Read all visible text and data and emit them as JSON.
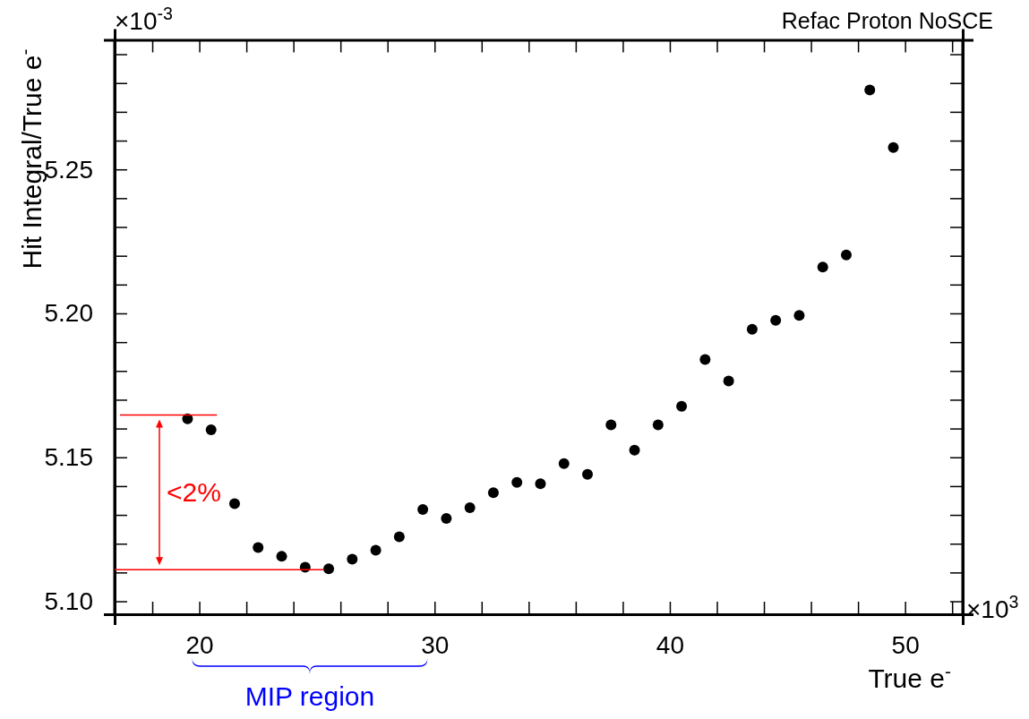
{
  "chart_data": {
    "type": "scatter",
    "title": "Refac Proton NoSCE",
    "xlabel": "True e$^{-}$",
    "ylabel": "Hit Integral/True e$^{-}$",
    "annotations": [
      "×10$^{-3}$",
      "×10$^{3}$",
      "<2%",
      "MIP region"
    ],
    "x": [
      19.5,
      20.5,
      21.5,
      22.5,
      23.5,
      24.5,
      25.5,
      26.5,
      27.5,
      28.5,
      29.5,
      30.5,
      31.5,
      32.5,
      33.5,
      34.5,
      35.5,
      36.5,
      37.5,
      38.5,
      39.5,
      40.5,
      41.5,
      42.5,
      43.5,
      44.5,
      45.5,
      46.5,
      47.5,
      48.5,
      49.5
    ],
    "series": [
      {
        "color": "#000000",
        "values": [
          5.1634,
          5.1596,
          5.1339,
          5.1187,
          5.1156,
          5.1118,
          5.1113,
          5.1146,
          5.1177,
          5.1224,
          5.1319,
          5.1288,
          5.1325,
          5.1377,
          5.1413,
          5.1408,
          5.1478,
          5.1441,
          5.1613,
          5.1525,
          5.1613,
          5.1677,
          5.184,
          5.1765,
          5.1945,
          5.1976,
          5.1993,
          5.2161,
          5.2203,
          5.2776,
          5.2576
        ]
      }
    ],
    "xlim": [
      16.4,
      52.45
    ],
    "ylim": [
      5.0955,
      5.295
    ],
    "xticks": [
      {
        "value": 18,
        "label": null
      },
      20,
      {
        "value": 22,
        "label": null
      },
      {
        "value": 24,
        "label": null
      },
      {
        "value": 26,
        "label": null
      },
      {
        "value": 28,
        "label": null
      },
      30,
      {
        "value": 32,
        "label": null
      },
      {
        "value": 34,
        "label": null
      },
      {
        "value": 36,
        "label": null
      },
      {
        "value": 38,
        "label": null
      },
      40,
      {
        "value": 42,
        "label": null
      },
      {
        "value": 44,
        "label": null
      },
      {
        "value": 46,
        "label": null
      },
      {
        "value": 48,
        "label": null
      },
      50,
      {
        "value": 52,
        "label": null
      }
    ],
    "yticks": [
      {
        "value": 5.1,
        "label": "5.10"
      },
      {
        "value": 5.11,
        "label": null
      },
      {
        "value": 5.12,
        "label": null
      },
      {
        "value": 5.13,
        "label": null
      },
      {
        "value": 5.14,
        "label": null
      },
      5.15,
      {
        "value": 5.16,
        "label": null
      },
      {
        "value": 5.17,
        "label": null
      },
      {
        "value": 5.18,
        "label": null
      },
      {
        "value": 5.19,
        "label": null
      },
      {
        "value": 5.2,
        "label": "5.20"
      },
      {
        "value": 5.21,
        "label": null
      },
      {
        "value": 5.22,
        "label": null
      },
      {
        "value": 5.23,
        "label": null
      },
      {
        "value": 5.24,
        "label": null
      },
      5.25,
      {
        "value": 5.26,
        "label": null
      },
      {
        "value": 5.27,
        "label": null
      },
      {
        "value": 5.28,
        "label": null
      },
      {
        "value": 5.29,
        "label": null
      }
    ],
    "ref_lines": [
      {
        "axis": "y",
        "value": 5.1647,
        "color": "#ff0000"
      },
      {
        "axis": "y",
        "value": 5.111,
        "color": "#ff0000"
      }
    ],
    "marker": "circle",
    "grid": false
  }
}
